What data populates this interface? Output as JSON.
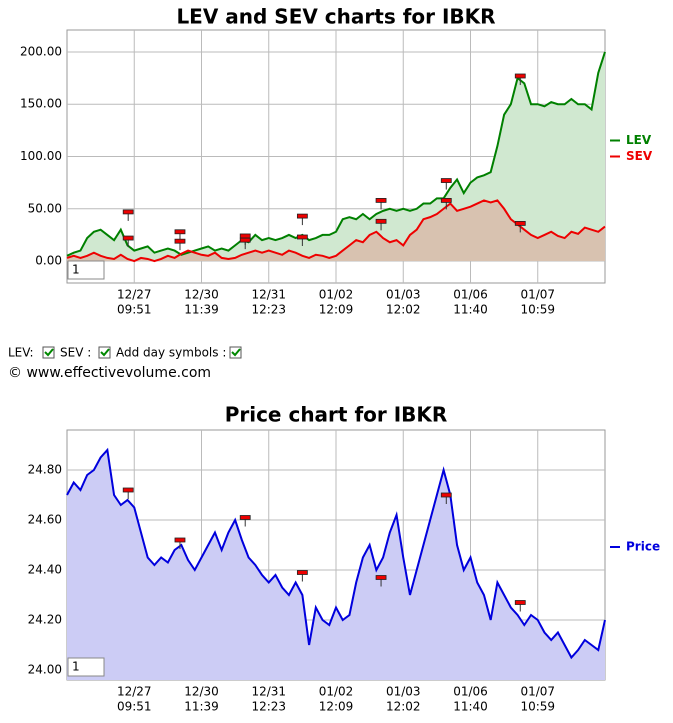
{
  "chart_data": [
    {
      "type": "area",
      "title": "LEV and SEV charts for IBKR",
      "x": [
        0,
        1,
        2,
        3,
        4,
        5,
        6,
        7,
        8,
        9,
        10,
        11,
        12,
        13,
        14,
        15,
        16,
        17,
        18,
        19,
        20,
        21,
        22,
        23,
        24,
        25,
        26,
        27,
        28,
        29,
        30,
        31,
        32,
        33,
        34,
        35,
        36,
        37,
        38,
        39,
        40,
        41,
        42,
        43,
        44,
        45,
        46,
        47,
        48,
        49,
        50,
        51,
        52,
        53,
        54,
        55,
        56,
        57,
        58,
        59,
        60,
        61,
        62,
        63,
        64,
        65,
        66,
        67,
        68,
        69,
        70,
        71,
        72,
        73,
        74,
        75,
        76,
        77,
        78,
        79,
        80
      ],
      "series": [
        {
          "name": "LEV",
          "color": "#008000",
          "area_color": "#d0e8d0",
          "values": [
            5,
            8,
            10,
            22,
            28,
            30,
            25,
            20,
            30,
            15,
            10,
            12,
            14,
            8,
            10,
            12,
            10,
            6,
            8,
            10,
            12,
            14,
            10,
            12,
            10,
            15,
            20,
            18,
            25,
            20,
            22,
            20,
            22,
            25,
            22,
            25,
            20,
            22,
            25,
            25,
            28,
            40,
            42,
            40,
            45,
            40,
            45,
            48,
            50,
            48,
            50,
            48,
            50,
            55,
            55,
            60,
            60,
            70,
            78,
            65,
            75,
            80,
            82,
            85,
            110,
            140,
            150,
            175,
            170,
            150,
            150,
            148,
            152,
            150,
            150,
            155,
            150,
            150,
            145,
            180,
            200
          ]
        },
        {
          "name": "SEV",
          "color": "#ee0000",
          "area_color": "#d8c2b0",
          "values": [
            3,
            5,
            3,
            5,
            8,
            5,
            3,
            2,
            6,
            2,
            0,
            3,
            2,
            0,
            2,
            5,
            3,
            7,
            10,
            8,
            6,
            5,
            8,
            3,
            2,
            3,
            6,
            8,
            10,
            8,
            10,
            8,
            6,
            10,
            8,
            5,
            3,
            6,
            5,
            3,
            5,
            10,
            15,
            20,
            18,
            25,
            28,
            22,
            18,
            20,
            15,
            25,
            30,
            40,
            42,
            45,
            50,
            55,
            48,
            50,
            52,
            55,
            58,
            56,
            58,
            50,
            40,
            35,
            30,
            25,
            22,
            25,
            28,
            24,
            22,
            28,
            26,
            32,
            30,
            28,
            33
          ]
        }
      ],
      "day_symbols": [
        {
          "x": 9.1,
          "y": 47
        },
        {
          "x": 9.1,
          "y": 22
        },
        {
          "x": 16.8,
          "y": 28
        },
        {
          "x": 16.8,
          "y": 19
        },
        {
          "x": 26.5,
          "y": 24
        },
        {
          "x": 26.5,
          "y": 20
        },
        {
          "x": 35,
          "y": 43
        },
        {
          "x": 35,
          "y": 23
        },
        {
          "x": 46.7,
          "y": 58
        },
        {
          "x": 46.7,
          "y": 38
        },
        {
          "x": 56.4,
          "y": 77
        },
        {
          "x": 56.4,
          "y": 58
        },
        {
          "x": 67.4,
          "y": 177
        },
        {
          "x": 67.4,
          "y": 36
        }
      ],
      "xlim": [
        0,
        80
      ],
      "xticks": [
        {
          "value": 10,
          "label": [
            "12/27",
            "09:51"
          ]
        },
        {
          "value": 20,
          "label": [
            "12/30",
            "11:39"
          ]
        },
        {
          "value": 30,
          "label": [
            "12/31",
            "12:23"
          ]
        },
        {
          "value": 40,
          "label": [
            "01/02",
            "12:09"
          ]
        },
        {
          "value": 50,
          "label": [
            "01/03",
            "12:02"
          ]
        },
        {
          "value": 60,
          "label": [
            "01/06",
            "11:40"
          ]
        },
        {
          "value": 70,
          "label": [
            "01/07",
            "10:59"
          ]
        }
      ],
      "ylim": [
        -21,
        221
      ],
      "yticks": [
        {
          "value": 0,
          "label": "0.00"
        },
        {
          "value": 50,
          "label": "50.00"
        },
        {
          "value": 100,
          "label": "100.00"
        },
        {
          "value": 150,
          "label": "150.00"
        },
        {
          "value": 200,
          "label": "200.00"
        }
      ],
      "grid": true,
      "legend": "right",
      "zoom_box": "1"
    },
    {
      "type": "area",
      "title": "Price chart for IBKR",
      "x": [
        0,
        1,
        2,
        3,
        4,
        5,
        6,
        7,
        8,
        9,
        10,
        11,
        12,
        13,
        14,
        15,
        16,
        17,
        18,
        19,
        20,
        21,
        22,
        23,
        24,
        25,
        26,
        27,
        28,
        29,
        30,
        31,
        32,
        33,
        34,
        35,
        36,
        37,
        38,
        39,
        40,
        41,
        42,
        43,
        44,
        45,
        46,
        47,
        48,
        49,
        50,
        51,
        52,
        53,
        54,
        55,
        56,
        57,
        58,
        59,
        60,
        61,
        62,
        63,
        64,
        65,
        66,
        67,
        68,
        69,
        70,
        71,
        72,
        73,
        74,
        75,
        76,
        77,
        78,
        79,
        80
      ],
      "series": [
        {
          "name": "Price",
          "color": "#0000dd",
          "area_color": "#ccccf5",
          "values": [
            24.7,
            24.75,
            24.72,
            24.78,
            24.8,
            24.85,
            24.88,
            24.7,
            24.66,
            24.68,
            24.65,
            24.55,
            24.45,
            24.42,
            24.45,
            24.43,
            24.48,
            24.5,
            24.44,
            24.4,
            24.45,
            24.5,
            24.55,
            24.48,
            24.55,
            24.6,
            24.52,
            24.45,
            24.42,
            24.38,
            24.35,
            24.38,
            24.33,
            24.3,
            24.35,
            24.3,
            24.1,
            24.25,
            24.2,
            24.18,
            24.25,
            24.2,
            24.22,
            24.35,
            24.45,
            24.5,
            24.4,
            24.45,
            24.55,
            24.62,
            24.45,
            24.3,
            24.4,
            24.5,
            24.6,
            24.7,
            24.8,
            24.7,
            24.5,
            24.4,
            24.45,
            24.35,
            24.3,
            24.2,
            24.35,
            24.3,
            24.25,
            24.22,
            24.18,
            24.22,
            24.2,
            24.15,
            24.12,
            24.15,
            24.1,
            24.05,
            24.08,
            24.12,
            24.1,
            24.08,
            24.2
          ]
        }
      ],
      "day_symbols": [
        {
          "x": 9.1,
          "y": 24.72
        },
        {
          "x": 16.8,
          "y": 24.52
        },
        {
          "x": 26.5,
          "y": 24.61
        },
        {
          "x": 35,
          "y": 24.39
        },
        {
          "x": 46.7,
          "y": 24.37
        },
        {
          "x": 56.4,
          "y": 24.7
        },
        {
          "x": 67.4,
          "y": 24.27
        }
      ],
      "xlim": [
        0,
        80
      ],
      "xticks": [
        {
          "value": 10,
          "label": [
            "12/27",
            "09:51"
          ]
        },
        {
          "value": 20,
          "label": [
            "12/30",
            "11:39"
          ]
        },
        {
          "value": 30,
          "label": [
            "12/31",
            "12:23"
          ]
        },
        {
          "value": 40,
          "label": [
            "01/02",
            "12:09"
          ]
        },
        {
          "value": 50,
          "label": [
            "01/03",
            "12:02"
          ]
        },
        {
          "value": 60,
          "label": [
            "01/06",
            "11:40"
          ]
        },
        {
          "value": 70,
          "label": [
            "01/07",
            "10:59"
          ]
        }
      ],
      "ylim": [
        23.96,
        24.96
      ],
      "yticks": [
        {
          "value": 24,
          "label": "24.00"
        },
        {
          "value": 24.2,
          "label": "24.20"
        },
        {
          "value": 24.4,
          "label": "24.40"
        },
        {
          "value": 24.6,
          "label": "24.60"
        },
        {
          "value": 24.8,
          "label": "24.80"
        }
      ],
      "grid": true,
      "legend": "right",
      "zoom_box": "1"
    }
  ],
  "controls": {
    "lev_label": "LEV:",
    "sev_label": "SEV :",
    "day_label": "Add day symbols :"
  },
  "copyright": "© www.effectivevolume.com"
}
